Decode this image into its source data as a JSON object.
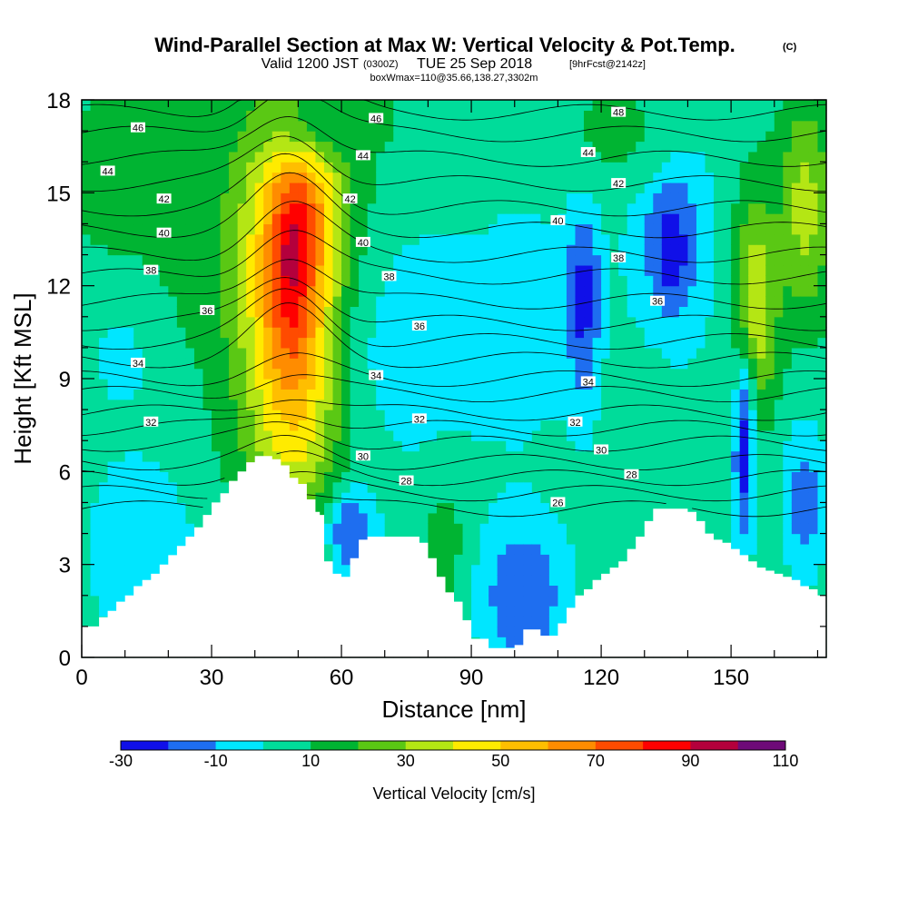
{
  "chart_data": {
    "type": "heatmap",
    "title": "Wind-Parallel Section at Max W: Vertical Velocity & Pot.Temp.",
    "title_mark": "(C)",
    "subtitle": {
      "valid": "Valid 1200 JST",
      "utc": "(0300Z)",
      "date": "TUE 25 Sep 2018",
      "fcst": "[9hrFcst@2142z]",
      "box": "boxWmax=110@35.66,138.27,3302m"
    },
    "xlabel": "Distance [nm]",
    "ylabel": "Height [Kft MSL]",
    "xlim": [
      0,
      172
    ],
    "ylim": [
      0,
      18
    ],
    "x_ticks": [
      0,
      30,
      60,
      90,
      120,
      150
    ],
    "y_ticks": [
      0,
      3,
      6,
      9,
      12,
      15,
      18
    ],
    "colorbar": {
      "label": "Vertical Velocity [cm/s]",
      "levels": [
        -30,
        -20,
        -10,
        0,
        10,
        20,
        30,
        40,
        50,
        60,
        70,
        80,
        90,
        100,
        110
      ],
      "tick_labels": [
        "-30",
        "-10",
        "10",
        "30",
        "50",
        "70",
        "90",
        "110"
      ],
      "colors": [
        "#1010e8",
        "#1e6ef0",
        "#00e6ff",
        "#00dc9a",
        "#00b432",
        "#5ac814",
        "#b4e614",
        "#ffeb00",
        "#ffbe00",
        "#ff8c00",
        "#ff4b00",
        "#ff0000",
        "#b4003c",
        "#6e0a78"
      ]
    },
    "background_value": 5,
    "blobs": [
      {
        "x": 16,
        "y": 15.5,
        "rx": 18,
        "ry": 3.5,
        "v": 20
      },
      {
        "x": 14,
        "y": 10,
        "rx": 14,
        "ry": 2.5,
        "v": -5
      },
      {
        "x": 15,
        "y": 3.5,
        "rx": 16,
        "ry": 4,
        "v": -5
      },
      {
        "x": 28,
        "y": 13,
        "rx": 16,
        "ry": 5,
        "v": 12
      },
      {
        "x": 50,
        "y": 11.5,
        "rx": 14,
        "ry": 7.5,
        "v": 55
      },
      {
        "x": 50,
        "y": 12.3,
        "rx": 8,
        "ry": 4.5,
        "v": 95
      },
      {
        "x": 49,
        "y": 12.5,
        "rx": 3,
        "ry": 1.8,
        "v": 108
      },
      {
        "x": 78,
        "y": 10,
        "rx": 22,
        "ry": 4.5,
        "v": -5
      },
      {
        "x": 62,
        "y": 4,
        "rx": 6,
        "ry": 1.6,
        "v": -20
      },
      {
        "x": 84,
        "y": 3.5,
        "rx": 6,
        "ry": 2.5,
        "v": 15
      },
      {
        "x": 102,
        "y": 2,
        "rx": 10,
        "ry": 2.5,
        "v": -20
      },
      {
        "x": 103,
        "y": 11,
        "rx": 11,
        "ry": 4,
        "v": -5
      },
      {
        "x": 116,
        "y": 11.5,
        "rx": 4,
        "ry": 3.5,
        "v": -25
      },
      {
        "x": 136,
        "y": 13.5,
        "rx": 9,
        "ry": 3.5,
        "v": -20
      },
      {
        "x": 136,
        "y": 13.2,
        "rx": 3,
        "ry": 1.6,
        "v": -30
      },
      {
        "x": 130,
        "y": 7.5,
        "rx": 9,
        "ry": 3.5,
        "v": 2
      },
      {
        "x": 156,
        "y": 11.5,
        "rx": 5,
        "ry": 3.5,
        "v": 40
      },
      {
        "x": 167,
        "y": 14.5,
        "rx": 6,
        "ry": 3.5,
        "v": 35
      },
      {
        "x": 153,
        "y": 6.5,
        "rx": 2.5,
        "ry": 3,
        "v": -25
      },
      {
        "x": 167,
        "y": 5,
        "rx": 5,
        "ry": 2.5,
        "v": -15
      },
      {
        "x": 123,
        "y": 17,
        "rx": 16,
        "ry": 2,
        "v": 12
      },
      {
        "x": 60,
        "y": 17.5,
        "rx": 20,
        "ry": 1.5,
        "v": 12
      }
    ],
    "terrain": [
      [
        0,
        1
      ],
      [
        2,
        1
      ],
      [
        4,
        1.3
      ],
      [
        6,
        1.5
      ],
      [
        8,
        1.8
      ],
      [
        10,
        2.0
      ],
      [
        12,
        2.3
      ],
      [
        14,
        2.5
      ],
      [
        16,
        2.7
      ],
      [
        18,
        3.0
      ],
      [
        20,
        3.3
      ],
      [
        22,
        3.6
      ],
      [
        24,
        3.9
      ],
      [
        26,
        4.2
      ],
      [
        28,
        4.6
      ],
      [
        30,
        5.0
      ],
      [
        32,
        5.3
      ],
      [
        34,
        5.7
      ],
      [
        36,
        6.0
      ],
      [
        38,
        6.3
      ],
      [
        40,
        6.5
      ],
      [
        42,
        6.5
      ],
      [
        44,
        6.4
      ],
      [
        46,
        6.2
      ],
      [
        48,
        5.8
      ],
      [
        50,
        5.6
      ],
      [
        52,
        5.1
      ],
      [
        54,
        4.7
      ],
      [
        55,
        4.6
      ],
      [
        56,
        3.1
      ],
      [
        58,
        2.7
      ],
      [
        60,
        2.6
      ],
      [
        62,
        3.2
      ],
      [
        64,
        3.8
      ],
      [
        66,
        3.9
      ],
      [
        70,
        3.9
      ],
      [
        74,
        3.9
      ],
      [
        78,
        3.7
      ],
      [
        80,
        3.2
      ],
      [
        82,
        2.6
      ],
      [
        84,
        2.1
      ],
      [
        86,
        1.8
      ],
      [
        88,
        1.2
      ],
      [
        90,
        0.6
      ],
      [
        92,
        0.6
      ],
      [
        94,
        0.3
      ],
      [
        96,
        0.3
      ],
      [
        98,
        0.3
      ],
      [
        100,
        0.4
      ],
      [
        102,
        0.9
      ],
      [
        104,
        0.9
      ],
      [
        106,
        0.7
      ],
      [
        108,
        0.7
      ],
      [
        110,
        1.1
      ],
      [
        112,
        1.6
      ],
      [
        114,
        2.0
      ],
      [
        116,
        2.2
      ],
      [
        118,
        2.5
      ],
      [
        120,
        2.7
      ],
      [
        122,
        2.9
      ],
      [
        124,
        3.1
      ],
      [
        126,
        3.5
      ],
      [
        128,
        3.9
      ],
      [
        130,
        4.4
      ],
      [
        132,
        4.8
      ],
      [
        134,
        4.8
      ],
      [
        136,
        4.8
      ],
      [
        138,
        4.8
      ],
      [
        140,
        4.7
      ],
      [
        142,
        4.4
      ],
      [
        144,
        4.0
      ],
      [
        146,
        3.8
      ],
      [
        148,
        3.7
      ],
      [
        150,
        3.5
      ],
      [
        152,
        3.3
      ],
      [
        154,
        3.1
      ],
      [
        156,
        2.9
      ],
      [
        158,
        2.8
      ],
      [
        160,
        2.7
      ],
      [
        162,
        2.6
      ],
      [
        164,
        2.5
      ],
      [
        166,
        2.3
      ],
      [
        168,
        2.2
      ],
      [
        170,
        2.0
      ],
      [
        172,
        2.0
      ]
    ],
    "theta_contours": {
      "levels": [
        26,
        27,
        28,
        29,
        30,
        31,
        32,
        33,
        34,
        35,
        36,
        37,
        38,
        39,
        40,
        41,
        42,
        43,
        44,
        45,
        46
      ],
      "base_height": [
        4.8,
        5.3,
        5.8,
        6.3,
        6.9,
        7.4,
        7.9,
        8.5,
        9.0,
        9.6,
        10.2,
        10.8,
        11.5,
        12.3,
        13.0,
        13.8,
        14.5,
        15.3,
        16.1,
        16.9,
        17.6
      ],
      "plume": {
        "x": 48,
        "amplitude": 1.6,
        "width": 12
      },
      "labels": [
        {
          "v": 46,
          "x": 13,
          "y": 17.1
        },
        {
          "v": 44,
          "x": 6,
          "y": 15.7
        },
        {
          "v": 42,
          "x": 19,
          "y": 14.8
        },
        {
          "v": 40,
          "x": 19,
          "y": 13.7
        },
        {
          "v": 38,
          "x": 16,
          "y": 12.5
        },
        {
          "v": 36,
          "x": 29,
          "y": 11.2
        },
        {
          "v": 34,
          "x": 13,
          "y": 9.5
        },
        {
          "v": 32,
          "x": 16,
          "y": 7.6
        },
        {
          "v": 46,
          "x": 68,
          "y": 17.4
        },
        {
          "v": 44,
          "x": 65,
          "y": 16.2
        },
        {
          "v": 42,
          "x": 62,
          "y": 14.8
        },
        {
          "v": 40,
          "x": 65,
          "y": 13.4
        },
        {
          "v": 38,
          "x": 71,
          "y": 12.3
        },
        {
          "v": 36,
          "x": 78,
          "y": 10.7
        },
        {
          "v": 34,
          "x": 68,
          "y": 9.1
        },
        {
          "v": 32,
          "x": 78,
          "y": 7.7
        },
        {
          "v": 30,
          "x": 65,
          "y": 6.5
        },
        {
          "v": 28,
          "x": 75,
          "y": 5.7
        },
        {
          "v": 48,
          "x": 124,
          "y": 17.6
        },
        {
          "v": 44,
          "x": 117,
          "y": 16.3
        },
        {
          "v": 42,
          "x": 124,
          "y": 15.3
        },
        {
          "v": 40,
          "x": 110,
          "y": 14.1
        },
        {
          "v": 38,
          "x": 124,
          "y": 12.9
        },
        {
          "v": 36,
          "x": 133,
          "y": 11.5
        },
        {
          "v": 34,
          "x": 117,
          "y": 8.9
        },
        {
          "v": 32,
          "x": 114,
          "y": 7.6
        },
        {
          "v": 30,
          "x": 120,
          "y": 6.7
        },
        {
          "v": 28,
          "x": 127,
          "y": 5.9
        },
        {
          "v": 26,
          "x": 110,
          "y": 5.0
        }
      ]
    }
  }
}
